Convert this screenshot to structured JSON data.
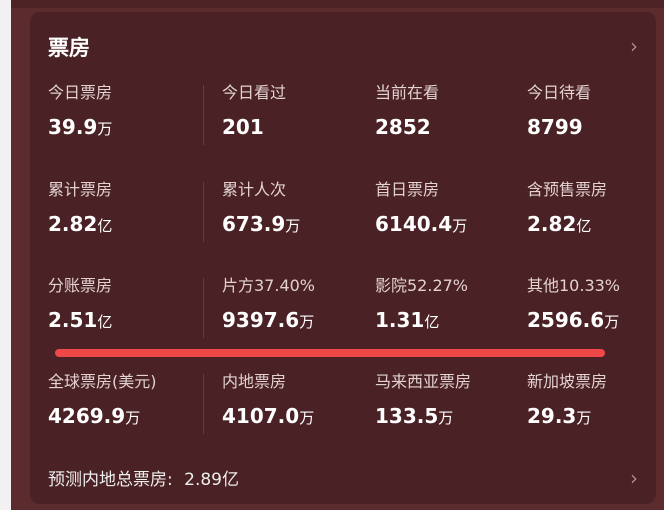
{
  "header": {
    "title": "票房"
  },
  "rows": [
    [
      {
        "label": "今日票房",
        "value": "39.9",
        "unit": "万"
      },
      {
        "label": "今日看过",
        "value": "201",
        "unit": ""
      },
      {
        "label": "当前在看",
        "value": "2852",
        "unit": ""
      },
      {
        "label": "今日待看",
        "value": "8799",
        "unit": ""
      }
    ],
    [
      {
        "label": "累计票房",
        "value": "2.82",
        "unit": "亿"
      },
      {
        "label": "累计人次",
        "value": "673.9",
        "unit": "万"
      },
      {
        "label": "首日票房",
        "value": "6140.4",
        "unit": "万"
      },
      {
        "label": "含预售票房",
        "value": "2.82",
        "unit": "亿"
      }
    ],
    [
      {
        "label": "分账票房",
        "value": "2.51",
        "unit": "亿"
      },
      {
        "label": "片方37.40%",
        "value": "9397.6",
        "unit": "万"
      },
      {
        "label": "影院52.27%",
        "value": "1.31",
        "unit": "亿"
      },
      {
        "label": "其他10.33%",
        "value": "2596.6",
        "unit": "万"
      }
    ],
    [
      {
        "label": "全球票房(美元)",
        "value": "4269.9",
        "unit": "万"
      },
      {
        "label": "内地票房",
        "value": "4107.0",
        "unit": "万"
      },
      {
        "label": "马来西亚票房",
        "value": "133.5",
        "unit": "万"
      },
      {
        "label": "新加坡票房",
        "value": "29.3",
        "unit": "万"
      }
    ]
  ],
  "forecast": {
    "label": "预测内地总票房:",
    "value": "2.89亿"
  },
  "colors": {
    "card": "#4a2124",
    "highlight": "#f04848"
  }
}
